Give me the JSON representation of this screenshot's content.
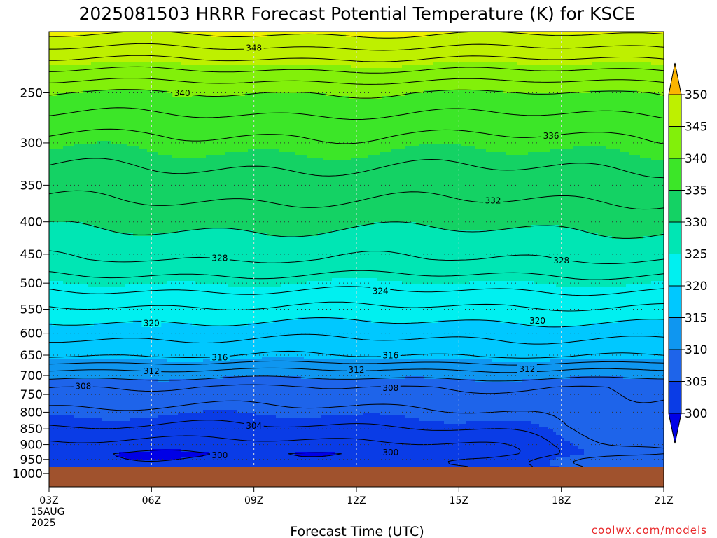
{
  "chart_data": {
    "type": "heatmap",
    "title": "2025081503 HRRR Forecast Potential Temperature (K) for KSCE",
    "xlabel": "Forecast Time (UTC)",
    "ylabel": "",
    "x_ticks": [
      "03Z",
      "06Z",
      "09Z",
      "12Z",
      "15Z",
      "18Z",
      "21Z"
    ],
    "x_date_label": [
      "15AUG",
      "2025"
    ],
    "y_ticks": [
      250,
      300,
      350,
      400,
      450,
      500,
      550,
      600,
      650,
      700,
      750,
      800,
      850,
      900,
      950,
      1000
    ],
    "y_range": [
      200,
      1050
    ],
    "y_scale": "log",
    "colorbar": {
      "levels": [
        300,
        305,
        310,
        315,
        320,
        325,
        330,
        335,
        340,
        345,
        350
      ],
      "colors": [
        "#0000e6",
        "#0a3ce6",
        "#1e64ea",
        "#0f96f0",
        "#00c8ff",
        "#00f0f0",
        "#00e6b4",
        "#14d264",
        "#3ce628",
        "#82f00a",
        "#bef000",
        "#f0f000",
        "#fab400"
      ],
      "extend": "both"
    },
    "ground_color": "#a0522d",
    "contour_labels": [
      {
        "value": "348",
        "time": 9.0,
        "p": 212
      },
      {
        "value": "340",
        "time": 6.9,
        "p": 250
      },
      {
        "value": "336",
        "time": 17.7,
        "p": 292
      },
      {
        "value": "332",
        "time": 16.0,
        "p": 370
      },
      {
        "value": "328",
        "time": 8.0,
        "p": 456
      },
      {
        "value": "328",
        "time": 18.0,
        "p": 460
      },
      {
        "value": "324",
        "time": 12.7,
        "p": 514
      },
      {
        "value": "320",
        "time": 6.0,
        "p": 578
      },
      {
        "value": "320",
        "time": 17.3,
        "p": 573
      },
      {
        "value": "316",
        "time": 8.0,
        "p": 655
      },
      {
        "value": "316",
        "time": 13.0,
        "p": 650
      },
      {
        "value": "312",
        "time": 6.0,
        "p": 688
      },
      {
        "value": "312",
        "time": 12.0,
        "p": 685
      },
      {
        "value": "312",
        "time": 17.0,
        "p": 683
      },
      {
        "value": "308",
        "time": 4.0,
        "p": 727
      },
      {
        "value": "308",
        "time": 13.0,
        "p": 732
      },
      {
        "value": "304",
        "time": 9.0,
        "p": 840
      },
      {
        "value": "300",
        "time": 8.0,
        "p": 935
      },
      {
        "value": "300",
        "time": 13.0,
        "p": 925
      }
    ],
    "credit": "coolwx.com/models"
  }
}
